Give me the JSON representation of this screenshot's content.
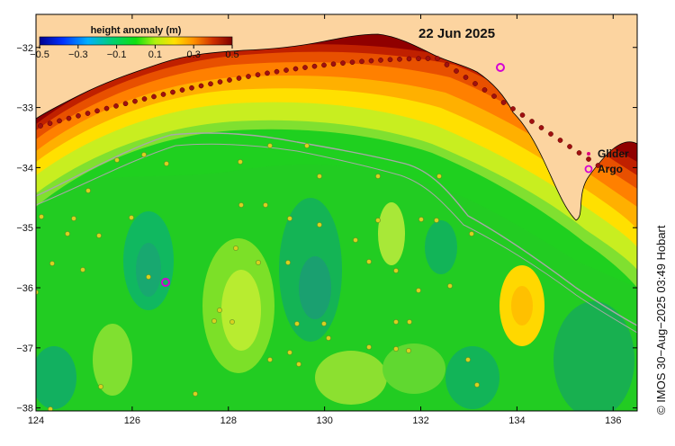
{
  "map": {
    "date": "22 Jun 2025",
    "colorbar": {
      "title": "height anomaly (m)",
      "ticks": [
        "−0.5",
        "−0.3",
        "−0.1",
        "0.1",
        "0.3",
        "0.5"
      ],
      "min": -0.5,
      "max": 0.5
    },
    "x_ticks": [
      "124",
      "126",
      "128",
      "130",
      "132",
      "134",
      "136"
    ],
    "y_ticks": [
      "−32",
      "−33",
      "−34",
      "−35",
      "−36",
      "−37",
      "−38"
    ],
    "lon_range": [
      124,
      136.5
    ],
    "lat_range": [
      -38.05,
      -31.45
    ],
    "legend": [
      {
        "label": "Glider",
        "marker": "dot",
        "color": "#e0007f"
      },
      {
        "label": "Argo",
        "marker": "ring",
        "color": "#d400d4"
      }
    ],
    "credit": "© IMOS 30−Aug−2025 03:49 Hobart",
    "colors": {
      "land": "#fcd4a0",
      "contour": "#a8a8a8",
      "frame": "#000000"
    }
  }
}
